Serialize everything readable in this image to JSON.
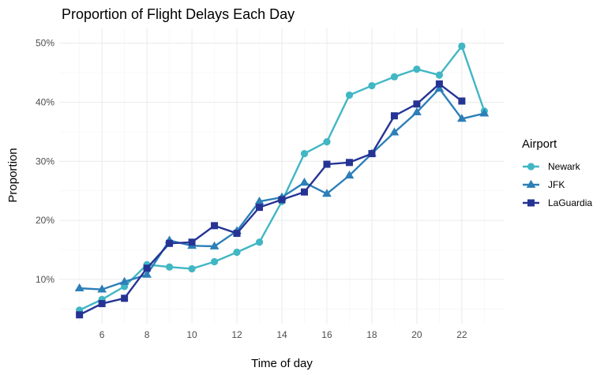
{
  "chart_data": {
    "type": "line",
    "title": "Proportion of Flight Delays Each Day",
    "xlabel": "Time of day",
    "ylabel": "Proportion",
    "xlim": [
      4.1,
      23.9
    ],
    "ylim": [
      0.025,
      0.525
    ],
    "x_ticks": [
      6,
      8,
      10,
      12,
      14,
      16,
      18,
      20,
      22
    ],
    "x_tick_labels": [
      "6",
      "8",
      "10",
      "12",
      "14",
      "16",
      "18",
      "20",
      "22"
    ],
    "y_ticks": [
      0.1,
      0.2,
      0.3,
      0.4,
      0.5
    ],
    "y_tick_labels": [
      "10%",
      "20%",
      "30%",
      "40%",
      "50%"
    ],
    "grid": true,
    "legend": {
      "title": "Airport",
      "position": "right"
    },
    "series": [
      {
        "name": "Newark",
        "color": "#41b6c4",
        "marker": "circle",
        "x": [
          5,
          6,
          7,
          8,
          9,
          10,
          11,
          12,
          13,
          14,
          15,
          16,
          17,
          18,
          19,
          20,
          21,
          22,
          23
        ],
        "y": [
          0.048,
          0.066,
          0.088,
          0.125,
          0.121,
          0.118,
          0.13,
          0.146,
          0.163,
          0.232,
          0.313,
          0.333,
          0.412,
          0.428,
          0.443,
          0.456,
          0.446,
          0.495,
          0.385
        ]
      },
      {
        "name": "JFK",
        "color": "#2c7fb8",
        "marker": "triangle",
        "x": [
          5,
          6,
          7,
          8,
          9,
          10,
          11,
          12,
          13,
          14,
          15,
          16,
          17,
          18,
          19,
          20,
          21,
          22,
          23
        ],
        "y": [
          0.085,
          0.083,
          0.096,
          0.108,
          0.166,
          0.157,
          0.156,
          0.182,
          0.232,
          0.239,
          0.264,
          0.245,
          0.276,
          0.313,
          0.349,
          0.383,
          0.423,
          0.372,
          0.381
        ]
      },
      {
        "name": "LaGuardia",
        "color": "#253494",
        "marker": "square",
        "x": [
          5,
          6,
          7,
          8,
          9,
          10,
          11,
          12,
          13,
          14,
          15,
          16,
          17,
          18,
          19,
          20,
          21,
          22
        ],
        "y": [
          0.04,
          0.059,
          0.068,
          0.119,
          0.161,
          0.163,
          0.191,
          0.178,
          0.222,
          0.235,
          0.248,
          0.295,
          0.298,
          0.313,
          0.377,
          0.397,
          0.431,
          0.402
        ]
      }
    ]
  }
}
